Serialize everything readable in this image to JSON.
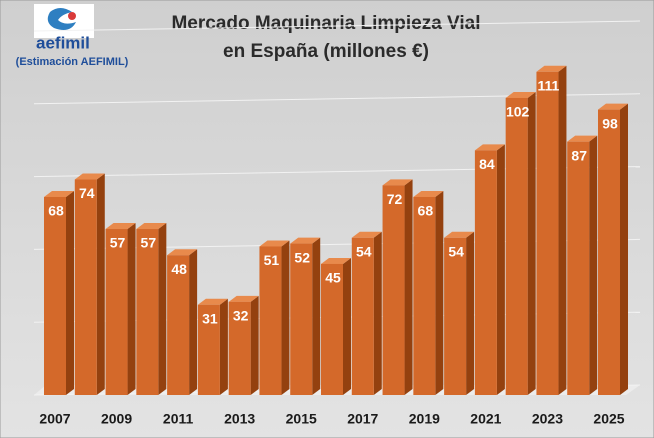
{
  "logo": {
    "name": "aefimil",
    "note": "(Estimación AEFIMIL)"
  },
  "chart_data": {
    "type": "bar3d",
    "title": [
      "Mercado Maquinaria Limpieza Vial",
      "en España (millones €)"
    ],
    "categories": [
      "2007",
      null,
      "2009",
      null,
      "2011",
      null,
      "2013",
      null,
      "2015",
      null,
      "2017",
      null,
      "2019",
      null,
      "2021",
      null,
      "2023",
      null,
      "2025"
    ],
    "values": [
      68,
      74,
      57,
      57,
      48,
      31,
      32,
      51,
      52,
      45,
      54,
      72,
      68,
      54,
      84,
      102,
      111,
      87,
      98
    ],
    "color": "#d4692a",
    "ylim": [
      0,
      125
    ],
    "yticks": [
      0,
      25,
      50,
      75,
      100,
      125
    ],
    "grid": true
  }
}
